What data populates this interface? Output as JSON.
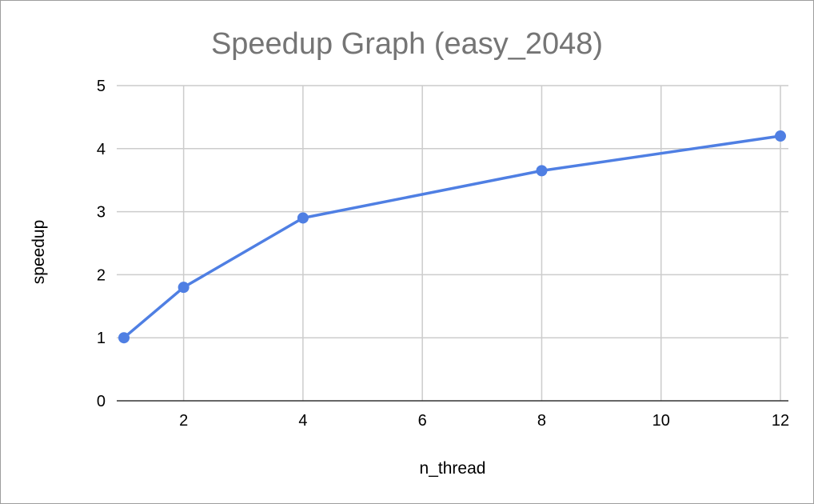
{
  "chart_data": {
    "type": "line",
    "title": "Speedup Graph (easy_2048)",
    "xlabel": "n_thread",
    "ylabel": "speedup",
    "xlim": [
      1,
      12
    ],
    "ylim": [
      0,
      5
    ],
    "x_ticks": [
      2,
      4,
      6,
      8,
      10,
      12
    ],
    "y_ticks": [
      0,
      1,
      2,
      3,
      4,
      5
    ],
    "grid": true,
    "legend": "none",
    "series": [
      {
        "color": "#4f7fe3",
        "points": [
          {
            "x": 1,
            "y": 1.0
          },
          {
            "x": 2,
            "y": 1.8
          },
          {
            "x": 4,
            "y": 2.9
          },
          {
            "x": 8,
            "y": 3.65
          },
          {
            "x": 12,
            "y": 4.2
          }
        ]
      }
    ]
  }
}
